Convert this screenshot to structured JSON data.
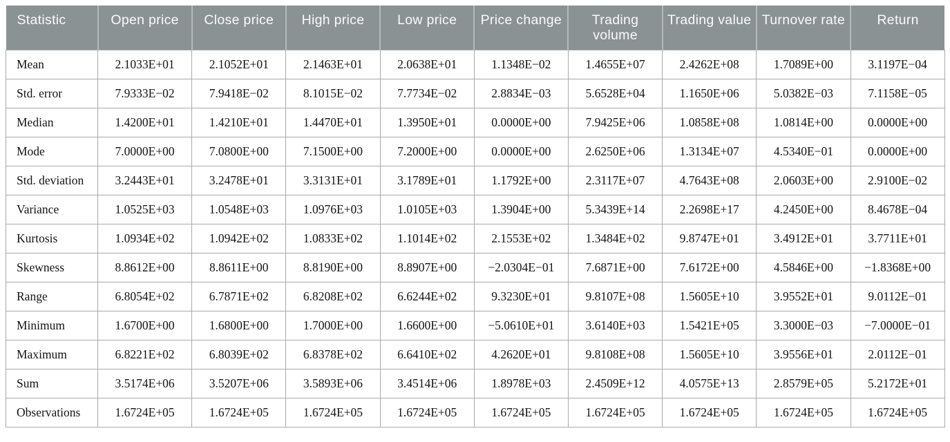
{
  "colors": {
    "header_bg": "#8b9294",
    "header_text": "#fafafa",
    "header_divider": "#b4babb",
    "body_border": "#a9a9a9",
    "body_text": "#141414",
    "page_bg": "#ffffff"
  },
  "chart_data": {
    "type": "table",
    "columns": [
      "Statistic",
      "Open price",
      "Close price",
      "High price",
      "Low price",
      "Price change",
      "Trading volume",
      "Trading value",
      "Turnover rate",
      "Return"
    ],
    "rows": [
      {
        "label": "Mean",
        "values": [
          "2.1033E+01",
          "2.1052E+01",
          "2.1463E+01",
          "2.0638E+01",
          "1.1348E−02",
          "1.4655E+07",
          "2.4262E+08",
          "1.7089E+00",
          "3.1197E−04"
        ]
      },
      {
        "label": "Std. error",
        "values": [
          "7.9333E−02",
          "7.9418E−02",
          "8.1015E−02",
          "7.7734E−02",
          "2.8834E−03",
          "5.6528E+04",
          "1.1650E+06",
          "5.0382E−03",
          "7.1158E−05"
        ]
      },
      {
        "label": "Median",
        "values": [
          "1.4200E+01",
          "1.4210E+01",
          "1.4470E+01",
          "1.3950E+01",
          "0.0000E+00",
          "7.9425E+06",
          "1.0858E+08",
          "1.0814E+00",
          "0.0000E+00"
        ]
      },
      {
        "label": "Mode",
        "values": [
          "7.0000E+00",
          "7.0800E+00",
          "7.1500E+00",
          "7.2000E+00",
          "0.0000E+00",
          "2.6250E+06",
          "1.3134E+07",
          "4.5340E−01",
          "0.0000E+00"
        ]
      },
      {
        "label": "Std. deviation",
        "values": [
          "3.2443E+01",
          "3.2478E+01",
          "3.3131E+01",
          "3.1789E+01",
          "1.1792E+00",
          "2.3117E+07",
          "4.7643E+08",
          "2.0603E+00",
          "2.9100E−02"
        ]
      },
      {
        "label": "Variance",
        "values": [
          "1.0525E+03",
          "1.0548E+03",
          "1.0976E+03",
          "1.0105E+03",
          "1.3904E+00",
          "5.3439E+14",
          "2.2698E+17",
          "4.2450E+00",
          "8.4678E−04"
        ]
      },
      {
        "label": "Kurtosis",
        "values": [
          "1.0934E+02",
          "1.0942E+02",
          "1.0833E+02",
          "1.1014E+02",
          "2.1553E+02",
          "1.3484E+02",
          "9.8747E+01",
          "3.4912E+01",
          "3.7711E+01"
        ]
      },
      {
        "label": "Skewness",
        "values": [
          "8.8612E+00",
          "8.8611E+00",
          "8.8190E+00",
          "8.8907E+00",
          "−2.0304E−01",
          "7.6871E+00",
          "7.6172E+00",
          "4.5846E+00",
          "−1.8368E+00"
        ]
      },
      {
        "label": "Range",
        "values": [
          "6.8054E+02",
          "6.7871E+02",
          "6.8208E+02",
          "6.6244E+02",
          "9.3230E+01",
          "9.8107E+08",
          "1.5605E+10",
          "3.9552E+01",
          "9.0112E−01"
        ]
      },
      {
        "label": "Minimum",
        "values": [
          "1.6700E+00",
          "1.6800E+00",
          "1.7000E+00",
          "1.6600E+00",
          "−5.0610E+01",
          "3.6140E+03",
          "1.5421E+05",
          "3.3000E−03",
          "−7.0000E−01"
        ]
      },
      {
        "label": "Maximum",
        "values": [
          "6.8221E+02",
          "6.8039E+02",
          "6.8378E+02",
          "6.6410E+02",
          "4.2620E+01",
          "9.8108E+08",
          "1.5605E+10",
          "3.9556E+01",
          "2.0112E−01"
        ]
      },
      {
        "label": "Sum",
        "values": [
          "3.5174E+06",
          "3.5207E+06",
          "3.5893E+06",
          "3.4514E+06",
          "1.8978E+03",
          "2.4509E+12",
          "4.0575E+13",
          "2.8579E+05",
          "5.2172E+01"
        ]
      },
      {
        "label": "Observations",
        "values": [
          "1.6724E+05",
          "1.6724E+05",
          "1.6724E+05",
          "1.6724E+05",
          "1.6724E+05",
          "1.6724E+05",
          "1.6724E+05",
          "1.6724E+05",
          "1.6724E+05"
        ]
      }
    ]
  }
}
